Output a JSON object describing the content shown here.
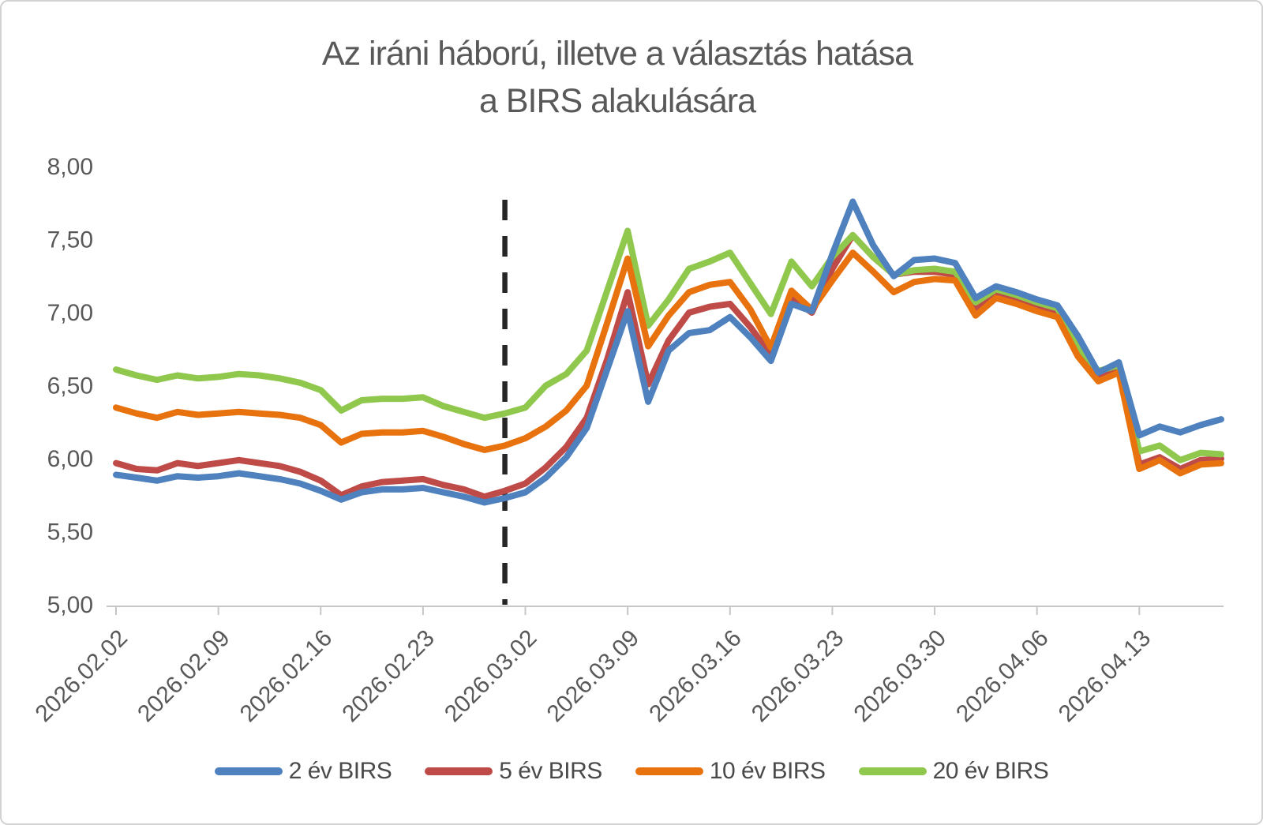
{
  "chart_data": {
    "type": "line",
    "title": "Az iráni háború, illetve a választás hatása a BIRS alakulására",
    "title_lines": [
      "Az iráni háború, illetve a választás hatása",
      "a BIRS alakulására"
    ],
    "ylim": [
      5.0,
      8.0
    ],
    "grid": false,
    "legend_position": "bottom",
    "background": "#FFFFFF",
    "axis_color": "#C6C6C6",
    "label_color": "#595959",
    "y_ticks": [
      {
        "value": 5.0,
        "label": "5,00"
      },
      {
        "value": 5.5,
        "label": "5,50"
      },
      {
        "value": 6.0,
        "label": "6,00"
      },
      {
        "value": 6.5,
        "label": "6,50"
      },
      {
        "value": 7.0,
        "label": "7,00"
      },
      {
        "value": 7.5,
        "label": "7,50"
      },
      {
        "value": 8.0,
        "label": "8,00"
      }
    ],
    "x_tick_labels": [
      "2026.02.02",
      "2026.02.09",
      "2026.02.16",
      "2026.02.23",
      "2026.03.02",
      "2026.03.09",
      "2026.03.16",
      "2026.03.23",
      "2026.03.30",
      "2026.04.06",
      "2026.04.13"
    ],
    "x_tick_indices": [
      0,
      5,
      10,
      15,
      20,
      25,
      30,
      35,
      40,
      45,
      50
    ],
    "event_line": {
      "x_index": 19,
      "color": "#262626",
      "style": "dashed"
    },
    "series": [
      {
        "name": "2 év BIRS",
        "color": "#4E81BD",
        "values": [
          5.89,
          5.87,
          5.85,
          5.88,
          5.87,
          5.88,
          5.9,
          5.88,
          5.86,
          5.83,
          5.78,
          5.72,
          5.77,
          5.79,
          5.79,
          5.8,
          5.77,
          5.74,
          5.7,
          5.73,
          5.77,
          5.87,
          6.01,
          6.21,
          6.61,
          7.01,
          6.39,
          6.74,
          6.86,
          6.88,
          6.97,
          6.83,
          6.67,
          7.06,
          7.01,
          7.4,
          7.76,
          7.46,
          7.25,
          7.36,
          7.37,
          7.34,
          7.1,
          7.18,
          7.14,
          7.09,
          7.05,
          6.84,
          6.59,
          6.66,
          6.16,
          6.22,
          6.18,
          6.23,
          6.27
        ]
      },
      {
        "name": "5 év BIRS",
        "color": "#BE4B48",
        "values": [
          5.97,
          5.93,
          5.92,
          5.97,
          5.95,
          5.97,
          5.99,
          5.97,
          5.95,
          5.91,
          5.85,
          5.75,
          5.81,
          5.84,
          5.85,
          5.86,
          5.82,
          5.79,
          5.74,
          5.78,
          5.83,
          5.94,
          6.08,
          6.28,
          6.68,
          7.14,
          6.51,
          6.81,
          7.0,
          7.04,
          7.06,
          6.9,
          6.71,
          7.1,
          7.0,
          7.3,
          7.53,
          7.38,
          7.26,
          7.28,
          7.28,
          7.26,
          7.03,
          7.12,
          7.08,
          7.03,
          6.99,
          6.72,
          6.55,
          6.61,
          5.96,
          6.01,
          5.93,
          5.99,
          6.0
        ]
      },
      {
        "name": "10 év BIRS",
        "color": "#E8720E",
        "values": [
          6.35,
          6.31,
          6.28,
          6.32,
          6.3,
          6.31,
          6.32,
          6.31,
          6.3,
          6.28,
          6.23,
          6.11,
          6.17,
          6.18,
          6.18,
          6.19,
          6.15,
          6.1,
          6.06,
          6.09,
          6.14,
          6.22,
          6.33,
          6.5,
          6.93,
          7.37,
          6.77,
          6.98,
          7.14,
          7.19,
          7.21,
          7.02,
          6.76,
          7.15,
          7.02,
          7.22,
          7.41,
          7.28,
          7.14,
          7.21,
          7.23,
          7.22,
          6.98,
          7.1,
          7.06,
          7.01,
          6.97,
          6.7,
          6.53,
          6.59,
          5.93,
          5.99,
          5.9,
          5.96,
          5.97
        ]
      },
      {
        "name": "20 év BIRS",
        "color": "#90C84E",
        "values": [
          6.61,
          6.57,
          6.54,
          6.57,
          6.55,
          6.56,
          6.58,
          6.57,
          6.55,
          6.52,
          6.47,
          6.33,
          6.4,
          6.41,
          6.41,
          6.42,
          6.36,
          6.32,
          6.28,
          6.31,
          6.35,
          6.5,
          6.58,
          6.74,
          7.15,
          7.56,
          6.91,
          7.09,
          7.3,
          7.35,
          7.41,
          7.2,
          6.99,
          7.35,
          7.18,
          7.38,
          7.53,
          7.38,
          7.26,
          7.29,
          7.3,
          7.28,
          7.07,
          7.16,
          7.12,
          7.07,
          7.03,
          6.77,
          6.6,
          6.64,
          6.05,
          6.09,
          5.99,
          6.04,
          6.03
        ]
      }
    ]
  }
}
